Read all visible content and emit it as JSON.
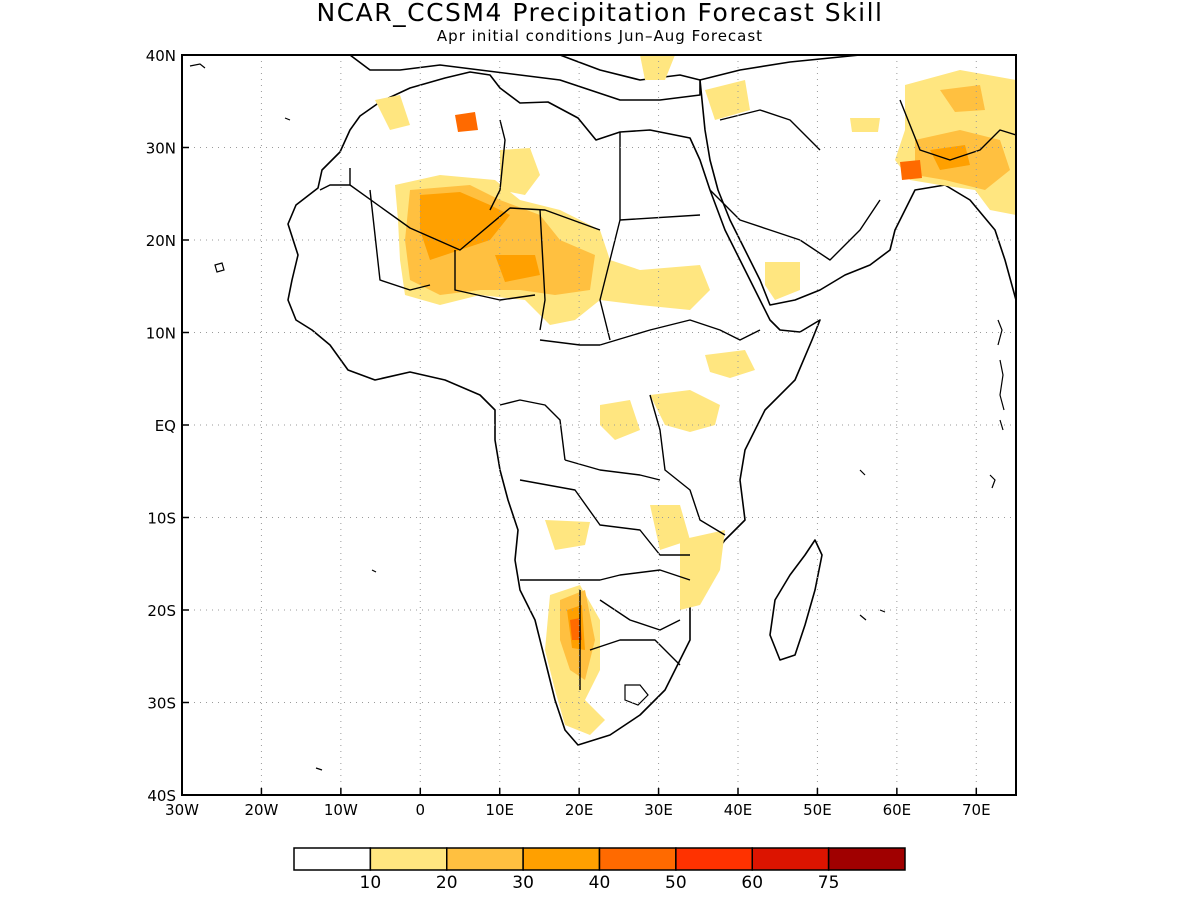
{
  "title": "NCAR_CCSM4 Precipitation Forecast Skill",
  "subtitle": "Apr initial conditions  Jun–Aug Forecast",
  "map": {
    "lon_range": [
      -30,
      75
    ],
    "lat_range": [
      -40,
      40
    ],
    "lon_ticks": [
      {
        "lon": -30,
        "label": "30W"
      },
      {
        "lon": -20,
        "label": "20W"
      },
      {
        "lon": -10,
        "label": "10W"
      },
      {
        "lon": 0,
        "label": "0"
      },
      {
        "lon": 10,
        "label": "10E"
      },
      {
        "lon": 20,
        "label": "20E"
      },
      {
        "lon": 30,
        "label": "30E"
      },
      {
        "lon": 40,
        "label": "40E"
      },
      {
        "lon": 50,
        "label": "50E"
      },
      {
        "lon": 60,
        "label": "60E"
      },
      {
        "lon": 70,
        "label": "70E"
      }
    ],
    "lat_ticks": [
      {
        "lat": 40,
        "label": "40N"
      },
      {
        "lat": 30,
        "label": "30N"
      },
      {
        "lat": 20,
        "label": "20N"
      },
      {
        "lat": 10,
        "label": "10N"
      },
      {
        "lat": 0,
        "label": "EQ"
      },
      {
        "lat": -10,
        "label": "10S"
      },
      {
        "lat": -20,
        "label": "20S"
      },
      {
        "lat": -30,
        "label": "30S"
      },
      {
        "lat": -40,
        "label": "40S"
      }
    ],
    "grid": true,
    "colorbar": {
      "colors": [
        "#ffffff",
        "#ffe680",
        "#ffc040",
        "#ffa000",
        "#ff6a00",
        "#ff3200",
        "#dc1400",
        "#a00000"
      ],
      "labels": [
        "10",
        "20",
        "30",
        "40",
        "50",
        "60",
        "75"
      ]
    }
  }
}
